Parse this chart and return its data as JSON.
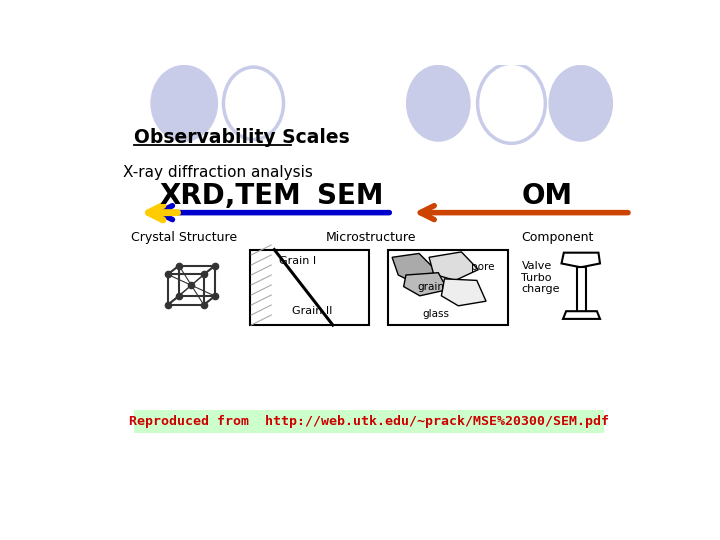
{
  "title": "Observability Scales",
  "subtitle": "X-ray diffraction analysis",
  "circle_color_filled": "#c8cce8",
  "circle_color_outline": "#c8cce8",
  "bg_color": "#ffffff",
  "arrow_blue_color": "#0000cc",
  "arrow_red_color": "#cc4400",
  "arrow_yellow_color": "#ffcc00",
  "label_xrd": "XRD,TEM",
  "label_sem": "SEM",
  "label_om": "OM",
  "label_crystal": "Crystal Structure",
  "label_micro": "Microstructure",
  "label_component": "Component",
  "footer_text": "Reproduced from  http://web.utk.edu/~prack/MSE%20300/SEM.pdf",
  "footer_bg": "#ccffcc",
  "footer_text_color": "#cc0000",
  "circles_top_left": [
    [
      120,
      490,
      88,
      100,
      true
    ],
    [
      210,
      490,
      78,
      94,
      false
    ]
  ],
  "circles_top_right": [
    [
      450,
      490,
      84,
      100,
      true
    ],
    [
      545,
      490,
      88,
      104,
      false
    ],
    [
      635,
      490,
      84,
      100,
      true
    ]
  ]
}
